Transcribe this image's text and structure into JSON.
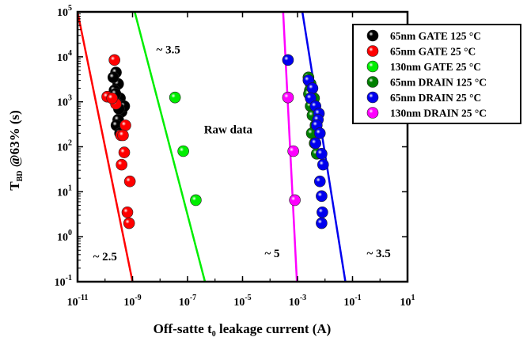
{
  "chart_data": {
    "type": "scatter",
    "title": "",
    "ylabel": {
      "main": "T",
      "sub": "BD",
      "rest": " @63% (s)"
    },
    "xlabel": {
      "main": "Off-satte t",
      "sub": "0",
      "rest": " leakage current (A)"
    },
    "x_scale": "log",
    "y_scale": "log",
    "xlim": [
      1e-11,
      10
    ],
    "ylim": [
      0.1,
      100000
    ],
    "x_ticks": [
      {
        "value": 1e-11,
        "base": "10",
        "exp": "-11"
      },
      {
        "value": 1e-09,
        "base": "10",
        "exp": "-9"
      },
      {
        "value": 1e-07,
        "base": "10",
        "exp": "-7"
      },
      {
        "value": 1e-05,
        "base": "10",
        "exp": "-5"
      },
      {
        "value": 0.001,
        "base": "10",
        "exp": "-3"
      },
      {
        "value": 0.1,
        "base": "10",
        "exp": "-1"
      },
      {
        "value": 10,
        "base": "10",
        "exp": "1"
      }
    ],
    "y_ticks": [
      {
        "value": 0.1,
        "base": "10",
        "exp": "-1"
      },
      {
        "value": 1,
        "base": "10",
        "exp": "0"
      },
      {
        "value": 10,
        "base": "10",
        "exp": "1"
      },
      {
        "value": 100,
        "base": "10",
        "exp": "2"
      },
      {
        "value": 1000,
        "base": "10",
        "exp": "3"
      },
      {
        "value": 10000,
        "base": "10",
        "exp": "4"
      },
      {
        "value": 100000,
        "base": "10",
        "exp": "5"
      }
    ],
    "grid": false,
    "legend_position": "top-right",
    "series": [
      {
        "name": "65nm GATE 125 °C",
        "color": "#000000",
        "points": [
          [
            2.5e-10,
            4500
          ],
          [
            3e-10,
            2500
          ],
          [
            2.2e-10,
            1800
          ],
          [
            3.5e-10,
            1200
          ],
          [
            2.8e-10,
            900
          ],
          [
            4e-10,
            600
          ],
          [
            3e-10,
            400
          ],
          [
            2.6e-10,
            300
          ],
          [
            3.5e-10,
            200
          ],
          [
            2e-10,
            3500
          ],
          [
            2.4e-10,
            1500
          ],
          [
            5e-10,
            800
          ],
          [
            3.2e-10,
            700
          ]
        ]
      },
      {
        "name": "65nm GATE 25 °C",
        "color": "#ff0000",
        "points": [
          [
            2.2e-10,
            8500
          ],
          [
            1.2e-10,
            1300
          ],
          [
            2.5e-10,
            900
          ],
          [
            5.5e-10,
            300
          ],
          [
            3.8e-10,
            180
          ],
          [
            4e-10,
            40
          ],
          [
            5e-10,
            75
          ],
          [
            8e-10,
            17
          ],
          [
            6.5e-10,
            3.5
          ],
          [
            7.5e-10,
            2
          ],
          [
            4.5e-10,
            180
          ],
          [
            1.8e-10,
            1200
          ]
        ]
      },
      {
        "name": "130nm GATE 25 °C",
        "color": "#00ee00",
        "points": [
          [
            3.5e-08,
            1250
          ],
          [
            7e-08,
            80
          ],
          [
            2e-07,
            6.5
          ]
        ]
      },
      {
        "name": "65nm DRAIN 125 °C",
        "color": "#008000",
        "points": [
          [
            0.0025,
            3500
          ],
          [
            0.003,
            2500
          ],
          [
            0.0028,
            1800
          ],
          [
            0.004,
            1200
          ],
          [
            0.003,
            800
          ],
          [
            0.0035,
            500
          ],
          [
            0.0045,
            300
          ],
          [
            0.0033,
            200
          ],
          [
            0.0042,
            120
          ],
          [
            0.005,
            70
          ],
          [
            0.0026,
            1500
          ]
        ]
      },
      {
        "name": "65nm DRAIN 25 °C",
        "color": "#0000ee",
        "points": [
          [
            0.00045,
            8500
          ],
          [
            0.0025,
            3000
          ],
          [
            0.0035,
            2000
          ],
          [
            0.003,
            1200
          ],
          [
            0.0045,
            800
          ],
          [
            0.006,
            550
          ],
          [
            0.0055,
            400
          ],
          [
            0.005,
            300
          ],
          [
            0.0065,
            200
          ],
          [
            0.0045,
            120
          ],
          [
            0.0075,
            70
          ],
          [
            0.0085,
            40
          ],
          [
            0.0065,
            17
          ],
          [
            0.0075,
            8
          ],
          [
            0.008,
            3.5
          ],
          [
            0.0075,
            2
          ]
        ]
      },
      {
        "name": "130nm DRAIN 25 °C",
        "color": "#ff00ff",
        "points": [
          [
            0.00045,
            1250
          ],
          [
            0.0007,
            80
          ],
          [
            0.0008,
            6.5
          ]
        ]
      }
    ],
    "fit_lines": [
      {
        "color": "#ff0000",
        "from": [
          1e-11,
          100000
        ],
        "to": [
          1e-09,
          0.1
        ]
      },
      {
        "color": "#00ee00",
        "from": [
          1.2e-09,
          100000
        ],
        "to": [
          4.3e-07,
          0.1
        ]
      },
      {
        "color": "#ff00ff",
        "from": [
          0.0003,
          100000
        ],
        "to": [
          0.00095,
          0.1
        ]
      },
      {
        "color": "#0000ee",
        "from": [
          0.0015,
          100000
        ],
        "to": [
          0.055,
          0.1
        ]
      }
    ],
    "annotations": [
      {
        "text": "~ 3.5",
        "x": 2e-08,
        "y": 12000
      },
      {
        "text": "Raw data",
        "x": 3e-06,
        "y": 200
      },
      {
        "text": "~ 2.5",
        "x": 1e-10,
        "y": 0.3
      },
      {
        "text": "~ 5",
        "x": 0.00012,
        "y": 0.35
      },
      {
        "text": "~ 3.5",
        "x": 0.9,
        "y": 0.35
      }
    ]
  }
}
